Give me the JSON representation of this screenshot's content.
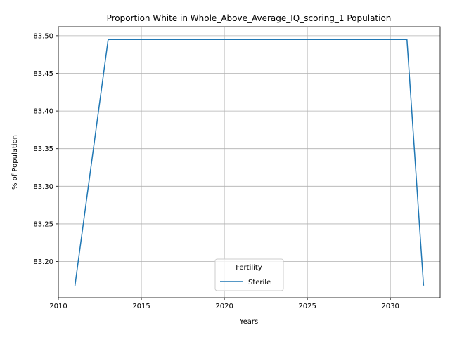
{
  "chart_data": {
    "type": "line",
    "title": "Proportion White in Whole_Above_Average_IQ_scoring_1 Population",
    "xlabel": "Years",
    "ylabel": "% of Population",
    "xlim": [
      2010,
      2033
    ],
    "ylim": [
      83.152,
      83.512
    ],
    "xticks": [
      2010,
      2015,
      2020,
      2025,
      2030
    ],
    "yticks": [
      83.2,
      83.25,
      83.3,
      83.35,
      83.4,
      83.45,
      83.5
    ],
    "xtick_labels": [
      "2010",
      "2015",
      "2020",
      "2025",
      "2030"
    ],
    "ytick_labels": [
      "83.20",
      "83.25",
      "83.30",
      "83.35",
      "83.40",
      "83.45",
      "83.50"
    ],
    "grid": true,
    "legend": {
      "title": "Fertility",
      "placement": "lower center"
    },
    "series": [
      {
        "name": "Sterile",
        "color": "#1f77b4",
        "x": [
          2011,
          2013,
          2015,
          2020,
          2025,
          2030,
          2031,
          2032
        ],
        "y": [
          83.168,
          83.495,
          83.495,
          83.495,
          83.495,
          83.495,
          83.495,
          83.168
        ]
      }
    ]
  }
}
